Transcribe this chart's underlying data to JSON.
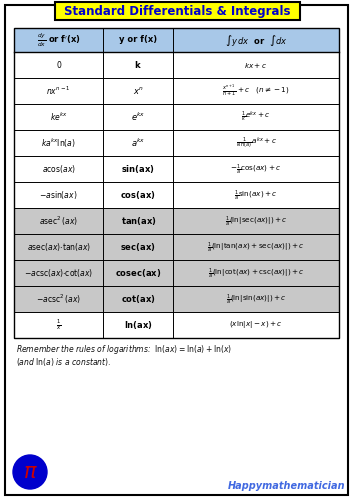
{
  "title": "Standard Differentials & Integrals",
  "title_bg": "#FFFF00",
  "title_color": "#0000CC",
  "page_bg": "#FFFFFF",
  "table_header_bg": "#A8C8E8",
  "table_row_bg_light": "#FFFFFF",
  "table_row_bg_gray": "#C8C8C8",
  "border_color": "#000000",
  "col1_header": "$\\frac{dy}{dx}$ or f$'$(x)",
  "col2_header": "y or f(x)",
  "col3_header": "$\\int y\\,dx$  or  $\\int dx$",
  "rows": [
    {
      "col1": "$0$",
      "col2": "$\\mathbf{k}$",
      "col3": "$kx + c$",
      "gray": false
    },
    {
      "col1": "$nx^{n-1}$",
      "col2": "$x^{n}$",
      "col3": "$\\frac{x^{n+1}}{n+1} + c \\quad (n \\neq -1)$",
      "gray": false
    },
    {
      "col1": "$ke^{kx}$",
      "col2": "$e^{kx}$",
      "col3": "$\\frac{1}{k}e^{kx} + c$",
      "gray": false
    },
    {
      "col1": "$ka^{kx}\\ln(a)$",
      "col2": "$a^{kx}$",
      "col3": "$\\frac{1}{k\\ln(a)}a^{kx} + c$",
      "gray": false
    },
    {
      "col1": "$a\\cos(ax)$",
      "col2": "$\\mathbf{sin(ax)}$",
      "col3": "$-\\frac{1}{a}\\cos(ax) + c$",
      "gray": false
    },
    {
      "col1": "$-a\\sin(ax)$",
      "col2": "$\\mathbf{cos(ax)}$",
      "col3": "$\\frac{1}{a}\\sin(ax) + c$",
      "gray": false
    },
    {
      "col1": "$a\\sec^2(ax)$",
      "col2": "$\\mathbf{tan(ax)}$",
      "col3": "$\\frac{1}{a}(\\ln|\\sec(ax)|) + c$",
      "gray": true
    },
    {
      "col1": "$a\\sec(ax){\\cdot}\\tan(ax)$",
      "col2": "$\\mathbf{sec(ax)}$",
      "col3": "$\\frac{1}{a}(\\ln|\\tan(ax)+\\sec(ax)|) + c$",
      "gray": true
    },
    {
      "col1": "$-a\\csc(ax){\\cdot}\\cot(ax)$",
      "col2": "$\\mathbf{cosec(ax)}$",
      "col3": "$\\frac{1}{a}(\\ln|\\cot(ax)+\\csc(ax)|) + c$",
      "gray": true
    },
    {
      "col1": "$-a\\csc^2(ax)$",
      "col2": "$\\mathbf{cot(ax)}$",
      "col3": "$\\frac{1}{a}(\\ln|\\sin(ax)|) + c$",
      "gray": true
    },
    {
      "col1": "$\\frac{1}{x}$",
      "col2": "$\\mathbf{ln(ax)}$",
      "col3": "$(x\\ln|x| - x) + c$",
      "gray": false
    }
  ],
  "footnote1": "Remember the rules of logarithms:  $\\mathrm{ln}(ax) = \\mathrm{ln}(a) + \\mathrm{ln}(x)$",
  "footnote2": "$(and\\ \\mathrm{ln}(a)\\ is\\ a\\ constant).$",
  "watermark": "Happymathematician",
  "watermark_color": "#4169E1",
  "pi_color": "#0000CC",
  "pi_text_color": "#CC0000"
}
